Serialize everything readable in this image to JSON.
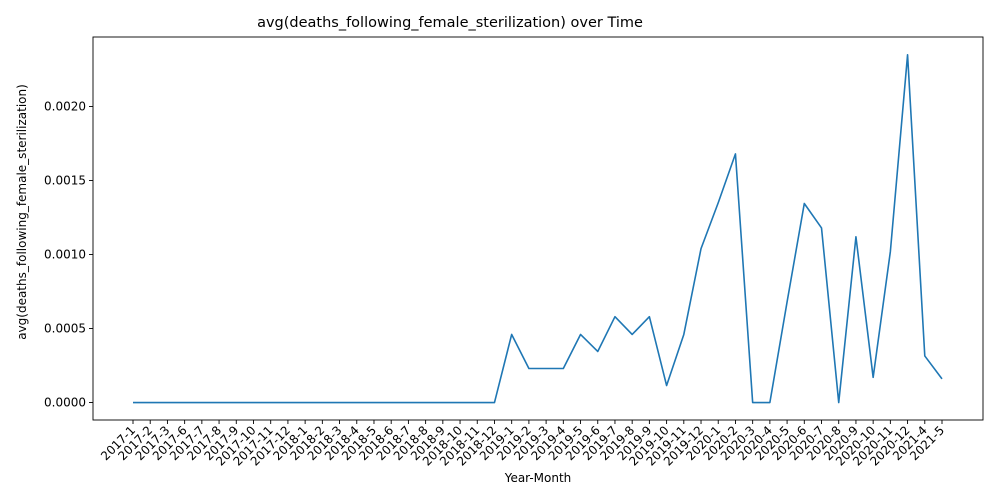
{
  "chart_data": {
    "type": "line",
    "title": "avg(deaths_following_female_sterilization) over Time",
    "xlabel": "Year-Month",
    "ylabel": "avg(deaths_following_female_sterilization)",
    "ylim": [
      -0.000118,
      0.00247
    ],
    "yticks": [
      0.0,
      0.0005,
      0.001,
      0.0015,
      0.002
    ],
    "ytick_labels": [
      "0.0000",
      "0.0005",
      "0.0010",
      "0.0015",
      "0.0020"
    ],
    "grid": false,
    "legend": "none",
    "line_color": "#1f77b4",
    "series": [
      {
        "x": [
          "2017-1",
          "2017-2",
          "2017-3",
          "2017-6",
          "2017-7",
          "2017-8",
          "2017-9",
          "2017-10",
          "2017-11",
          "2017-12",
          "2018-1",
          "2018-2",
          "2018-3",
          "2018-4",
          "2018-5",
          "2018-6",
          "2018-7",
          "2018-8",
          "2018-9",
          "2018-10",
          "2018-11",
          "2018-12",
          "2019-1",
          "2019-2",
          "2019-3",
          "2019-4",
          "2019-5",
          "2019-6",
          "2019-7",
          "2019-8",
          "2019-9",
          "2019-10",
          "2019-11",
          "2019-12",
          "2020-1",
          "2020-2",
          "2020-3",
          "2020-4",
          "2020-5",
          "2020-6",
          "2020-7",
          "2020-8",
          "2020-9",
          "2020-10",
          "2020-11",
          "2020-12",
          "2021-4",
          "2021-5"
        ],
        "values": [
          0,
          0,
          0,
          0,
          0,
          0,
          0,
          0,
          0,
          0,
          0,
          0,
          0,
          0,
          0,
          0,
          0,
          0,
          0,
          0,
          0,
          0,
          0.00046,
          0.00023,
          0.00023,
          0.00023,
          0.00046,
          0.000345,
          0.00058,
          0.00046,
          0.00058,
          0.000115,
          0.00046,
          0.00104,
          0.00135,
          0.00168,
          0,
          0,
          0.00068,
          0.001345,
          0.00118,
          0,
          0.00112,
          0.00017,
          0.00102,
          0.00235,
          0.000315,
          0.00016
        ]
      }
    ]
  }
}
